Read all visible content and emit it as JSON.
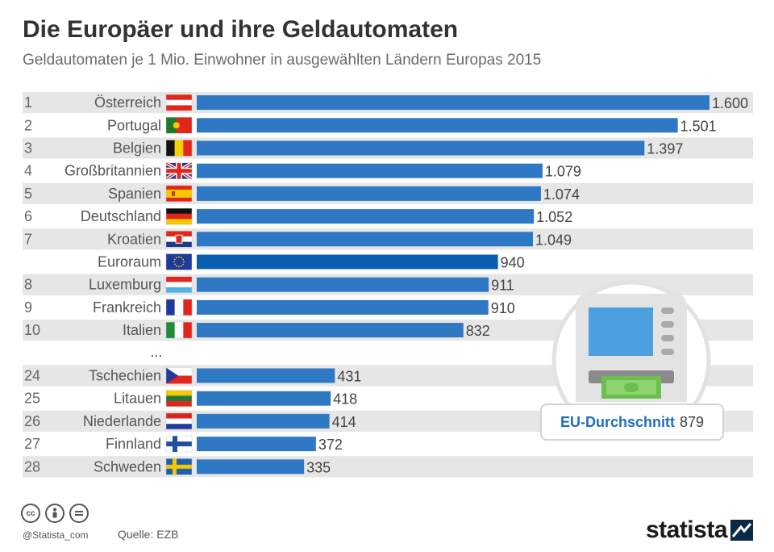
{
  "header": {
    "title": "Die Europäer und ihre Geldautomaten",
    "subtitle": "Geldautomaten je 1 Mio. Einwohner in ausgewählten Ländern Europas 2015"
  },
  "chart_data": {
    "type": "bar",
    "orientation": "horizontal",
    "title": "Die Europäer und ihre Geldautomaten",
    "subtitle": "Geldautomaten je 1 Mio. Einwohner in ausgewählten Ländern Europas 2015",
    "xlim": [
      0,
      1600
    ],
    "grid": false,
    "ellipsis_label": "...",
    "rows": [
      {
        "rank": "1",
        "country": "Österreich",
        "value": 1600,
        "label": "1.600",
        "flag": "at"
      },
      {
        "rank": "2",
        "country": "Portugal",
        "value": 1501,
        "label": "1.501",
        "flag": "pt"
      },
      {
        "rank": "3",
        "country": "Belgien",
        "value": 1397,
        "label": "1.397",
        "flag": "be"
      },
      {
        "rank": "4",
        "country": "Großbritannien",
        "value": 1079,
        "label": "1.079",
        "flag": "gb"
      },
      {
        "rank": "5",
        "country": "Spanien",
        "value": 1074,
        "label": "1.074",
        "flag": "es"
      },
      {
        "rank": "6",
        "country": "Deutschland",
        "value": 1052,
        "label": "1.052",
        "flag": "de"
      },
      {
        "rank": "7",
        "country": "Kroatien",
        "value": 1049,
        "label": "1.049",
        "flag": "hr"
      },
      {
        "rank": "",
        "country": "Euroraum",
        "value": 940,
        "label": "940",
        "flag": "eu",
        "highlight": true
      },
      {
        "rank": "8",
        "country": "Luxemburg",
        "value": 911,
        "label": "911",
        "flag": "lu"
      },
      {
        "rank": "9",
        "country": "Frankreich",
        "value": 910,
        "label": "910",
        "flag": "fr"
      },
      {
        "rank": "10",
        "country": "Italien",
        "value": 832,
        "label": "832",
        "flag": "it"
      },
      {
        "rank": "24",
        "country": "Tschechien",
        "value": 431,
        "label": "431",
        "flag": "cz"
      },
      {
        "rank": "25",
        "country": "Litauen",
        "value": 418,
        "label": "418",
        "flag": "lt"
      },
      {
        "rank": "26",
        "country": "Niederlande",
        "value": 414,
        "label": "414",
        "flag": "nl"
      },
      {
        "rank": "27",
        "country": "Finnland",
        "value": 372,
        "label": "372",
        "flag": "fi"
      },
      {
        "rank": "28",
        "country": "Schweden",
        "value": 335,
        "label": "335",
        "flag": "se"
      }
    ],
    "annotation": {
      "label": "EU-Durchschnitt",
      "value": "879"
    },
    "colors": {
      "bar": "#2f78c4",
      "bar_highlight": "#0a5eb0",
      "stripe": "#e6e6e6"
    }
  },
  "footer": {
    "handle": "@Statista_com",
    "source": "Quelle: EZB",
    "brand": "statista",
    "license_icons": [
      "cc-icon",
      "by-icon",
      "nd-icon"
    ]
  }
}
